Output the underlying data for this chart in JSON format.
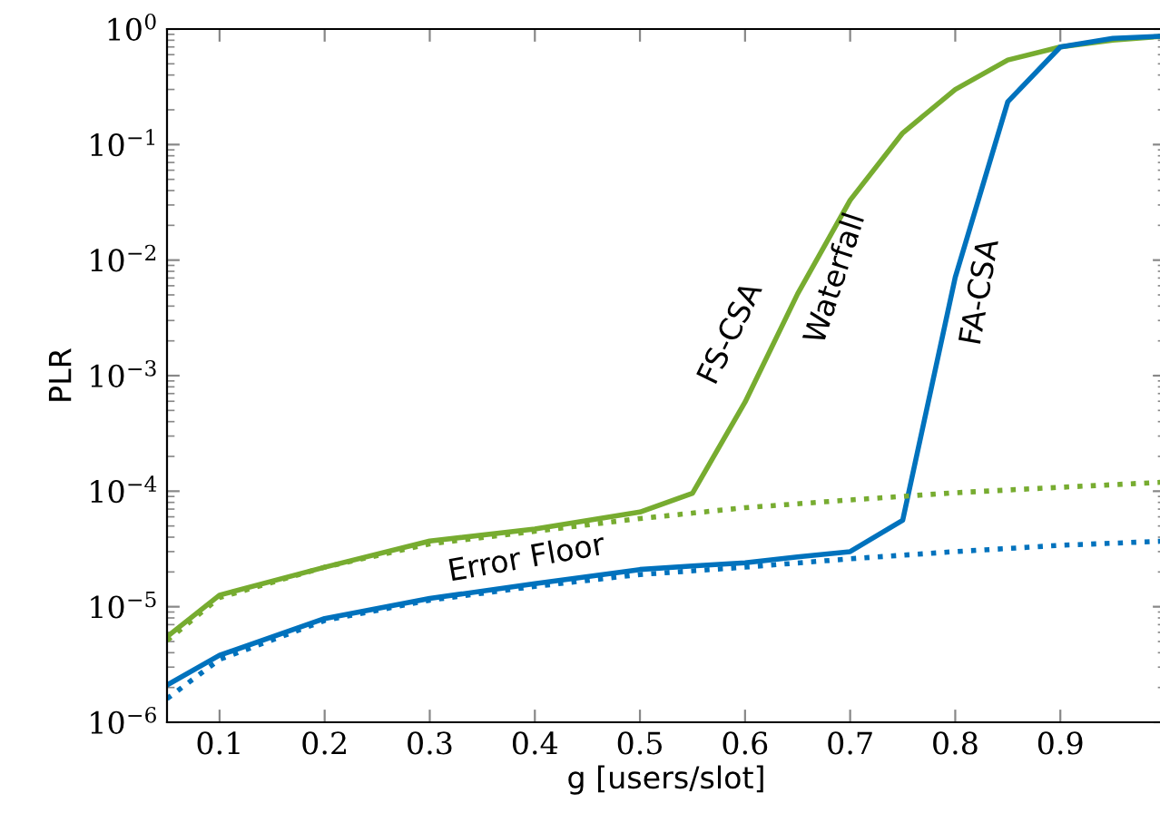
{
  "chart_data": {
    "type": "line",
    "xlabel": "g [users/slot]",
    "ylabel": "PLR",
    "log": "y",
    "x": [
      0.05,
      0.1,
      0.2,
      0.3,
      0.4,
      0.5,
      0.55,
      0.6,
      0.65,
      0.7,
      0.75,
      0.8,
      0.85,
      0.9,
      0.95,
      1.0
    ],
    "series": [
      {
        "color": "#77ac30",
        "line_style": "solid",
        "values": [
          5.5e-06,
          1.26e-05,
          2.2e-05,
          3.7e-05,
          4.7e-05,
          6.6e-05,
          9.6e-05,
          0.00059,
          0.0051,
          0.033,
          0.126,
          0.3,
          0.54,
          0.7,
          0.8,
          0.87
        ]
      },
      {
        "color": "#0072bd",
        "line_style": "solid",
        "values": [
          2.1e-06,
          3.8e-06,
          7.9e-06,
          1.18e-05,
          1.58e-05,
          2.1e-05,
          2.25e-05,
          2.4e-05,
          2.7e-05,
          3e-05,
          5.6e-05,
          0.0071,
          0.235,
          0.7,
          0.83,
          0.87
        ]
      },
      {
        "color": "#77ac30",
        "line_style": "dotted",
        "x": [
          0.05,
          0.1,
          0.2,
          0.3,
          0.4,
          0.5,
          0.6,
          0.7,
          0.8,
          0.9,
          1.0
        ],
        "values": [
          5.1e-06,
          1.2e-05,
          2.2e-05,
          3.5e-05,
          4.5e-05,
          5.8e-05,
          7.2e-05,
          8.4e-05,
          9.7e-05,
          0.000108,
          0.00012
        ]
      },
      {
        "color": "#0072bd",
        "line_style": "dotted",
        "x": [
          0.05,
          0.1,
          0.2,
          0.3,
          0.4,
          0.5,
          0.6,
          0.7,
          0.8,
          0.9,
          1.0
        ],
        "values": [
          1.6e-06,
          3.5e-06,
          7.6e-06,
          1.14e-05,
          1.5e-05,
          1.9e-05,
          2.2e-05,
          2.6e-05,
          3e-05,
          3.4e-05,
          3.7e-05
        ]
      }
    ],
    "annotations": [
      "FS-CSA",
      "Waterfall",
      "FA-CSA",
      "Error Floor"
    ],
    "xlim": [
      0.05,
      1.0
    ],
    "ylim": [
      1e-06,
      1
    ],
    "xticks": [
      0.1,
      0.2,
      0.3,
      0.4,
      0.5,
      0.6,
      0.7,
      0.8,
      0.9
    ],
    "yticks": [
      {
        "value": 1e-06,
        "label": "10$^{−6}$"
      },
      {
        "value": 1e-05,
        "label": "10$^{−5}$"
      },
      {
        "value": 0.0001,
        "label": "10$^{−4}$"
      },
      {
        "value": 0.001,
        "label": "10$^{−3}$"
      },
      {
        "value": 0.01,
        "label": "10$^{−2}$"
      },
      {
        "value": 0.1,
        "label": "10$^{−1}$"
      },
      {
        "value": 1,
        "label": "10$^{0}$"
      }
    ],
    "grid": false,
    "legend": false,
    "marker": "none"
  }
}
